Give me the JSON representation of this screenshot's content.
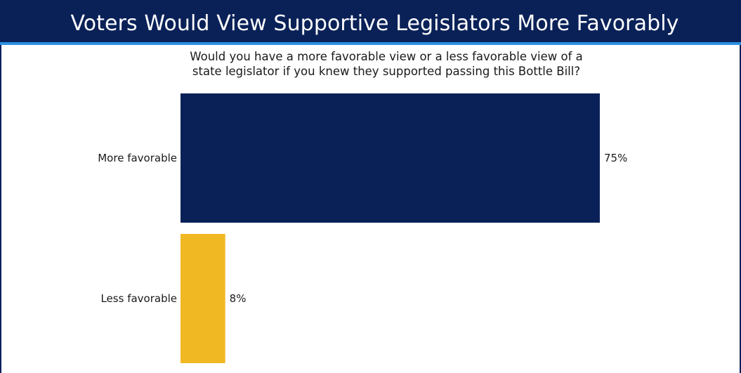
{
  "title": "Voters Would View Supportive Legislators More Favorably",
  "question": {
    "line1": "Would you have a more favorable view or a less favorable view of a",
    "line2": "state legislator if you knew they supported passing this Bottle Bill?"
  },
  "colors": {
    "title_bg": "#0a2158",
    "title_underline": "#2c8fe3",
    "more_favorable": "#0a2158",
    "less_favorable": "#f0b823"
  },
  "chart_data": {
    "type": "bar",
    "orientation": "horizontal",
    "categories": [
      "More favorable",
      "Less favorable"
    ],
    "values": [
      75,
      8
    ],
    "value_labels": [
      "75%",
      "8%"
    ],
    "xlim": [
      0,
      100
    ],
    "grid": false,
    "legend": "none"
  }
}
